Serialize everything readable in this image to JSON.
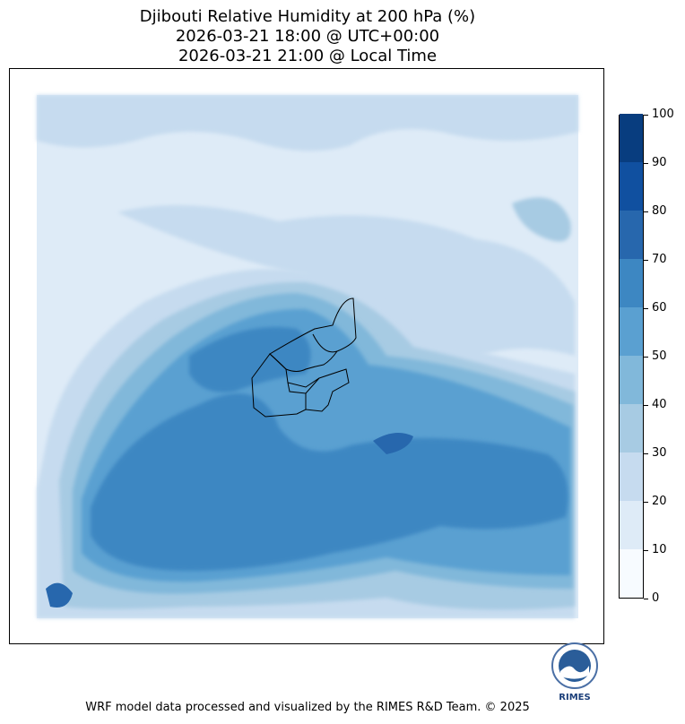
{
  "header": {
    "title_line1": "Djibouti Relative Humidity at 200 hPa (%)",
    "title_line2": "2026-03-21 18:00 @ UTC+00:00",
    "title_line3": "2026-03-21 21:00 @ Local Time"
  },
  "colorbar": {
    "levels": [
      "0",
      "10",
      "20",
      "30",
      "40",
      "50",
      "60",
      "70",
      "80",
      "90",
      "100"
    ],
    "colors": [
      "#f7fbff",
      "#deebf7",
      "#c6dbef",
      "#a7cbe3",
      "#81b8da",
      "#5aa0d1",
      "#3d87c2",
      "#2767ad",
      "#1050a0",
      "#083d7f"
    ]
  },
  "logo": {
    "text": "RIMES"
  },
  "footer": {
    "credit": "WRF model data processed and visualized by the RIMES R&D Team. © 2025"
  }
}
